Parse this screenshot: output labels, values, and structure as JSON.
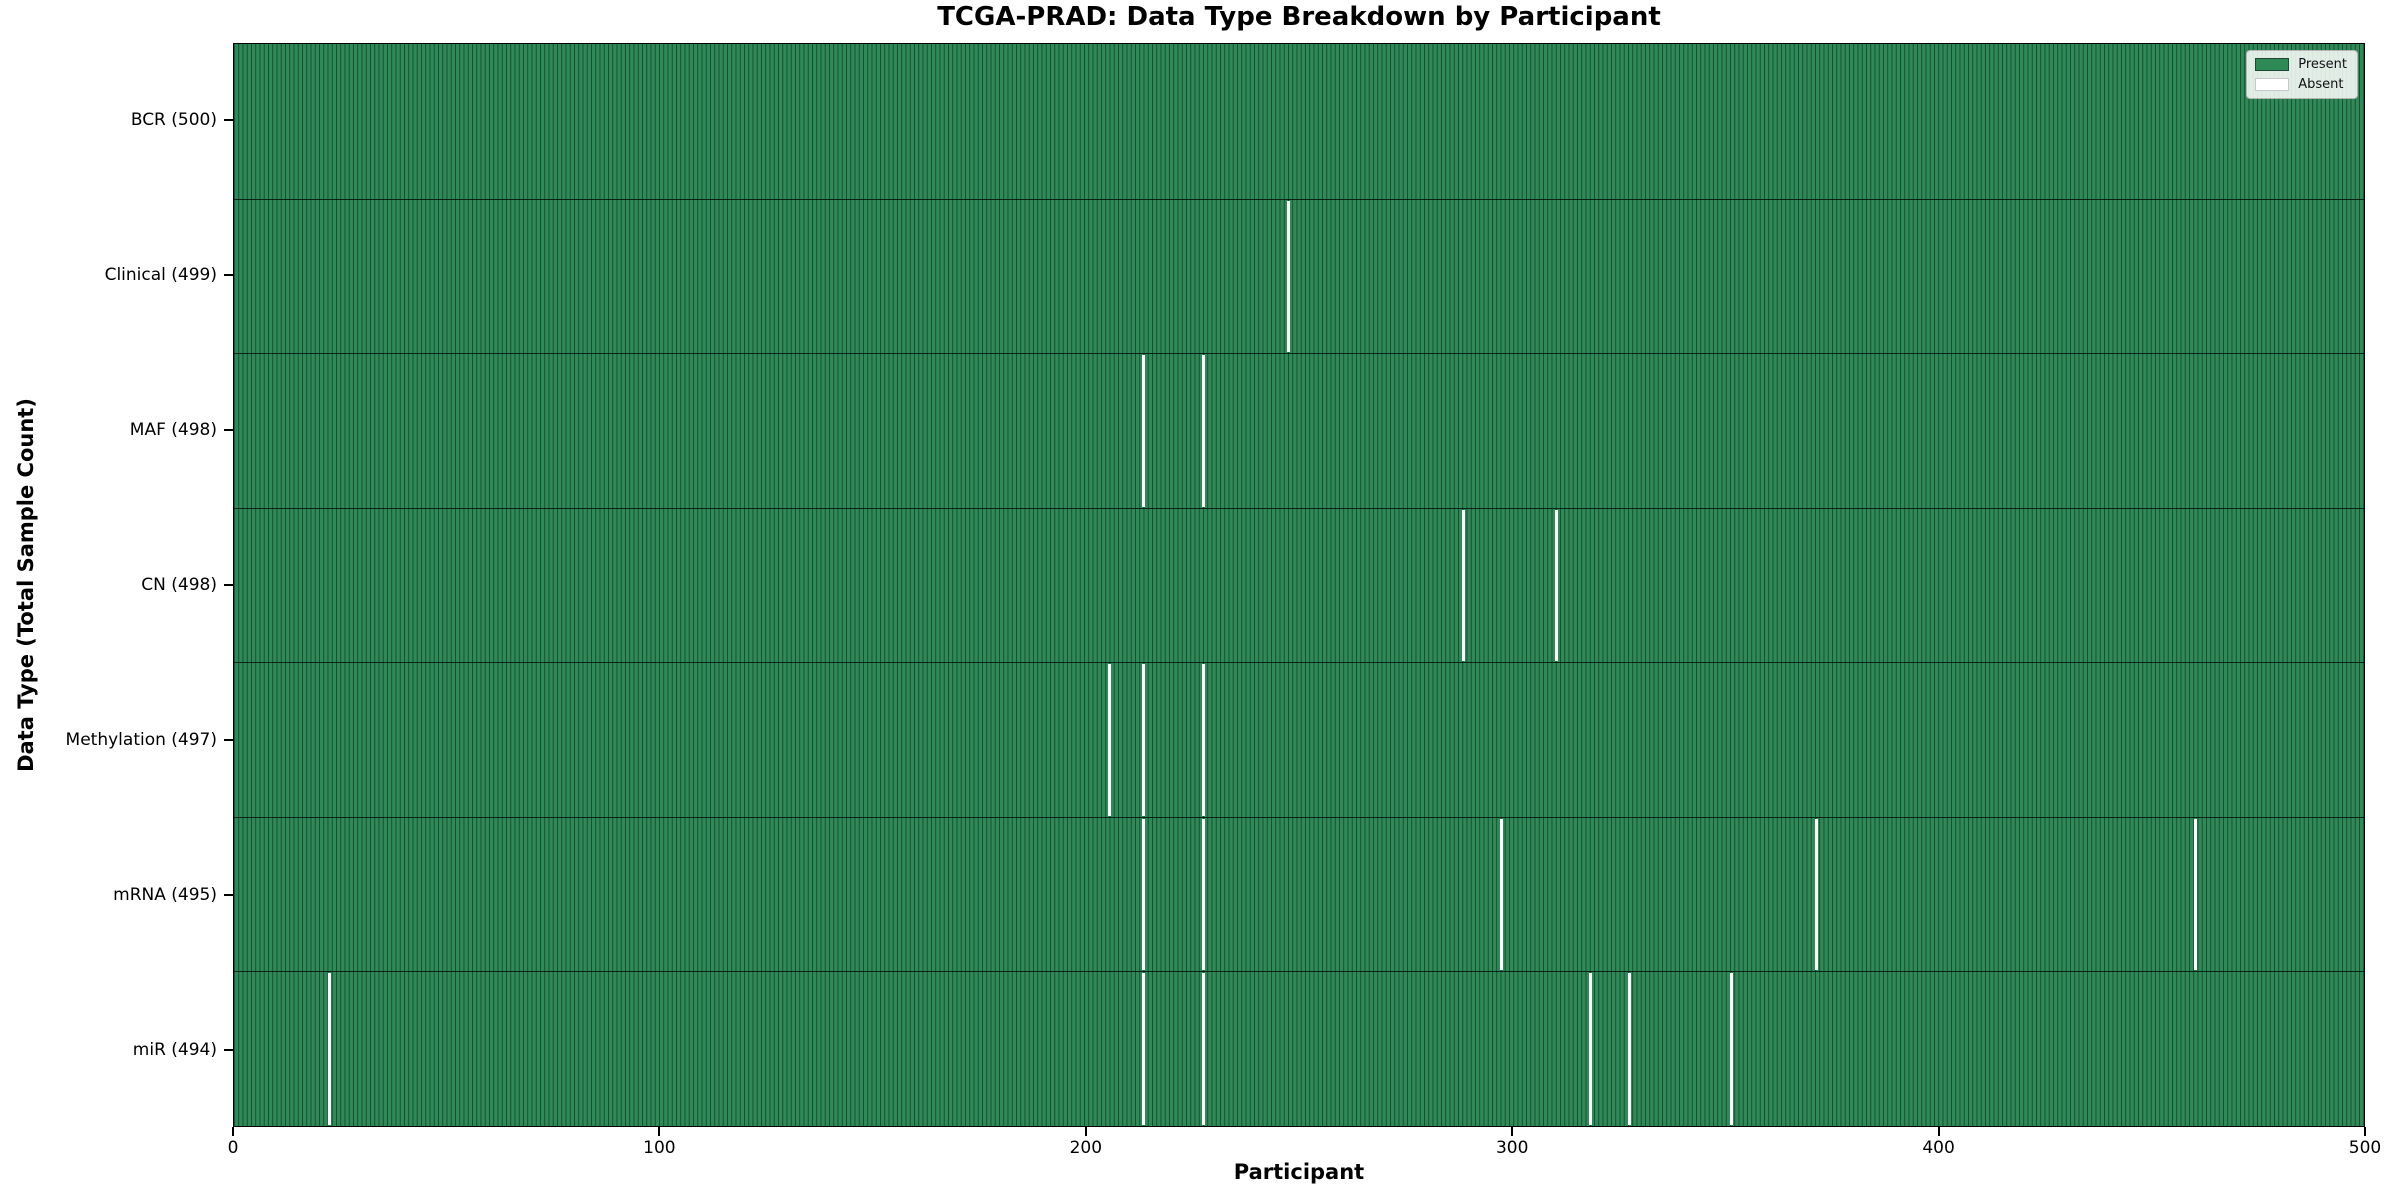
{
  "title": "TCGA-PRAD: Data Type Breakdown by Participant",
  "xlabel": "Participant",
  "ylabel": "Data Type (Total Sample Count)",
  "legend": {
    "present_label": "Present",
    "absent_label": "Absent"
  },
  "colors": {
    "present_fill": "#2e8b57",
    "bar_edge": "#1b4a31",
    "absent_fill": "#ffffff",
    "axis": "#000000",
    "legend_border": "#b5b5b5"
  },
  "chart_data": {
    "type": "heatmap",
    "title": "TCGA-PRAD: Data Type Breakdown by Participant",
    "xlabel": "Participant",
    "ylabel": "Data Type (Total Sample Count)",
    "legend_entries": [
      "Present",
      "Absent"
    ],
    "legend_position": "upper right",
    "grid": false,
    "x_range": [
      0,
      500
    ],
    "x_ticks": [
      0,
      100,
      200,
      300,
      400,
      500
    ],
    "n_participants": 500,
    "rows": [
      {
        "data_type": "BCR",
        "label": "BCR (500)",
        "present_count": 500,
        "absent_participants": []
      },
      {
        "data_type": "Clinical",
        "label": "Clinical (499)",
        "present_count": 499,
        "absent_participants": [
          247
        ]
      },
      {
        "data_type": "MAF",
        "label": "MAF (498)",
        "present_count": 498,
        "absent_participants": [
          213,
          227
        ]
      },
      {
        "data_type": "CN",
        "label": "CN (498)",
        "present_count": 498,
        "absent_participants": [
          288,
          310
        ]
      },
      {
        "data_type": "Methylation",
        "label": "Methylation (497)",
        "present_count": 497,
        "absent_participants": [
          205,
          213,
          227
        ]
      },
      {
        "data_type": "mRNA",
        "label": "mRNA (495)",
        "present_count": 495,
        "absent_participants": [
          213,
          227,
          297,
          371,
          460
        ]
      },
      {
        "data_type": "miR",
        "label": "miR (494)",
        "present_count": 494,
        "absent_participants": [
          22,
          213,
          227,
          318,
          327,
          351
        ]
      }
    ]
  }
}
